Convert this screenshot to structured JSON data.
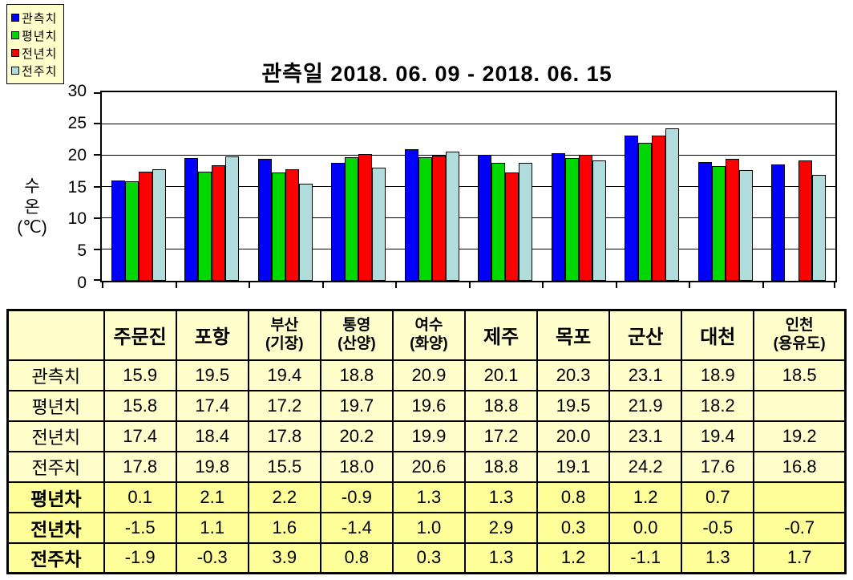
{
  "chart": {
    "title": "관측일 2018. 06. 09 - 2018. 06. 15",
    "y_axis_title": "수\n온\n(℃)"
  },
  "chart_data": {
    "type": "bar",
    "title": "관측일 2018. 06. 09 - 2018. 06. 15",
    "ylabel": "수온(℃)",
    "ylim": [
      0,
      30
    ],
    "yticks": [
      0,
      5,
      10,
      15,
      20,
      25,
      30
    ],
    "grid": true,
    "legend_position": "top-left",
    "categories": [
      "주문진",
      "포항",
      "부산(기장)",
      "통영(산양)",
      "여수(화양)",
      "제주",
      "목포",
      "군산",
      "대천",
      "인천(용유도)"
    ],
    "series": [
      {
        "name": "관측치",
        "color": "#0000FF",
        "values": [
          15.9,
          19.5,
          19.4,
          18.8,
          20.9,
          20.1,
          20.3,
          23.1,
          18.9,
          18.5
        ]
      },
      {
        "name": "평년치",
        "color": "#00D800",
        "values": [
          15.8,
          17.4,
          17.2,
          19.7,
          19.6,
          18.8,
          19.5,
          21.9,
          18.2,
          null
        ]
      },
      {
        "name": "전년치",
        "color": "#FF0000",
        "values": [
          17.4,
          18.4,
          17.8,
          20.2,
          19.9,
          17.2,
          20.0,
          23.1,
          19.4,
          19.2
        ]
      },
      {
        "name": "전주치",
        "color": "#B0DCDC",
        "values": [
          17.8,
          19.8,
          15.5,
          18.0,
          20.6,
          18.8,
          19.1,
          24.2,
          17.6,
          16.8
        ]
      }
    ]
  },
  "table": {
    "corner": "",
    "columns": [
      "주문진",
      "포항",
      "부산\n(기장)",
      "통영\n(산양)",
      "여수\n(화양)",
      "제주",
      "목포",
      "군산",
      "대천",
      "인천\n(용유도)"
    ],
    "rows": [
      {
        "label": "관측치",
        "diff": false,
        "values": [
          "15.9",
          "19.5",
          "19.4",
          "18.8",
          "20.9",
          "20.1",
          "20.3",
          "23.1",
          "18.9",
          "18.5"
        ]
      },
      {
        "label": "평년치",
        "diff": false,
        "values": [
          "15.8",
          "17.4",
          "17.2",
          "19.7",
          "19.6",
          "18.8",
          "19.5",
          "21.9",
          "18.2",
          ""
        ]
      },
      {
        "label": "전년치",
        "diff": false,
        "values": [
          "17.4",
          "18.4",
          "17.8",
          "20.2",
          "19.9",
          "17.2",
          "20.0",
          "23.1",
          "19.4",
          "19.2"
        ]
      },
      {
        "label": "전주치",
        "diff": false,
        "values": [
          "17.8",
          "19.8",
          "15.5",
          "18.0",
          "20.6",
          "18.8",
          "19.1",
          "24.2",
          "17.6",
          "16.8"
        ]
      },
      {
        "label": "평년차",
        "diff": true,
        "values": [
          "0.1",
          "2.1",
          "2.2",
          "-0.9",
          "1.3",
          "1.3",
          "0.8",
          "1.2",
          "0.7",
          ""
        ]
      },
      {
        "label": "전년차",
        "diff": true,
        "values": [
          "-1.5",
          "1.1",
          "1.6",
          "-1.4",
          "1.0",
          "2.9",
          "0.3",
          "0.0",
          "-0.5",
          "-0.7"
        ]
      },
      {
        "label": "전주차",
        "diff": true,
        "values": [
          "-1.9",
          "-0.3",
          "3.9",
          "0.8",
          "0.3",
          "1.3",
          "1.2",
          "-1.1",
          "1.3",
          "1.7"
        ]
      }
    ]
  },
  "colors": {
    "legend_bg": "#FFFFCC",
    "table_bg": "#FFFFCC",
    "diff_row_bg": "#FFFF99"
  }
}
